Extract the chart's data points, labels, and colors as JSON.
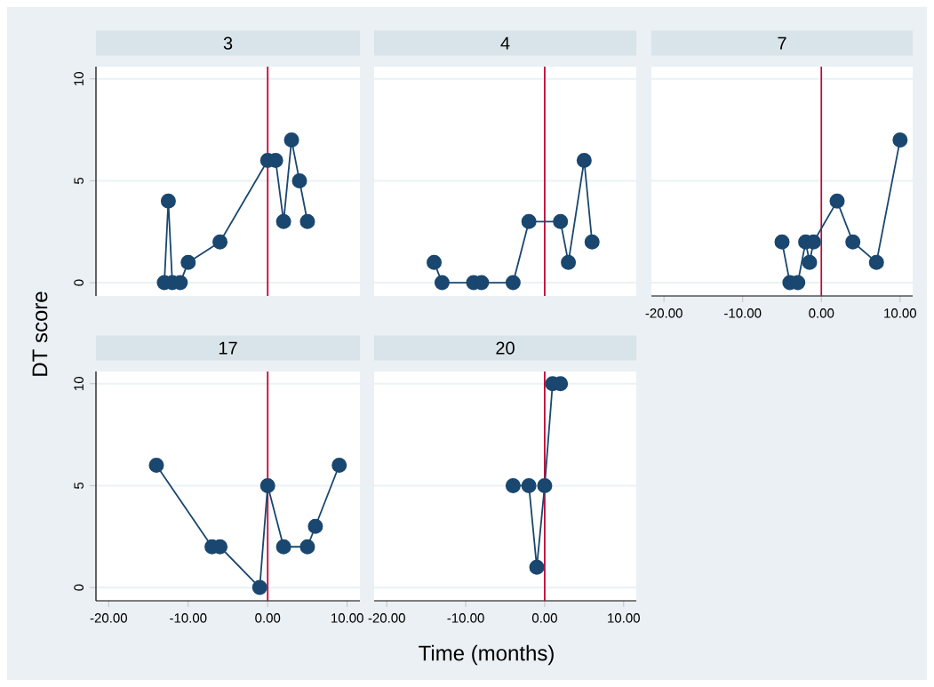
{
  "chart_data": [
    {
      "type": "line",
      "title": "3",
      "ylabel": "DT score",
      "marker": "circle",
      "grid": "y",
      "tick_labels": "y",
      "color": "#1a476f",
      "x": [
        -13,
        -12.5,
        -12,
        -11,
        -10,
        -6,
        0,
        1,
        2,
        3,
        4,
        5
      ],
      "values": [
        0,
        4,
        0,
        0,
        1,
        2,
        6,
        6,
        3,
        7,
        5,
        3
      ],
      "xlim": [
        -21.6,
        11.6
      ],
      "ylim": [
        -0.65,
        10.6
      ],
      "yticks": [
        0,
        5,
        10
      ],
      "ref_lines": [
        {
          "axis": "x",
          "value": 0,
          "color": "#c10534"
        }
      ]
    },
    {
      "type": "line",
      "title": "4",
      "marker": "circle",
      "grid": "y",
      "tick_labels": false,
      "color": "#1a476f",
      "x": [
        -14,
        -13,
        -9,
        -8,
        -4,
        -2,
        2,
        3,
        5,
        6
      ],
      "values": [
        1,
        0,
        0,
        0,
        0,
        3,
        3,
        1,
        6,
        2
      ],
      "xlim": [
        -21.6,
        11.6
      ],
      "ylim": [
        -0.65,
        10.6
      ],
      "yticks": [
        0,
        5,
        10
      ],
      "ref_lines": [
        {
          "axis": "x",
          "value": 0,
          "color": "#c10534"
        }
      ]
    },
    {
      "type": "line",
      "title": "7",
      "marker": "circle",
      "grid": "y",
      "tick_labels": "x",
      "color": "#1a476f",
      "x": [
        -5,
        -4,
        -3,
        -2,
        -1.5,
        -1,
        2,
        4,
        7,
        10
      ],
      "values": [
        2,
        0,
        0,
        2,
        1,
        2,
        4,
        2,
        1,
        7
      ],
      "xlim": [
        -21.6,
        11.6
      ],
      "ylim": [
        -0.65,
        10.6
      ],
      "xticks": [
        {
          "value": -20,
          "label": "-20.00"
        },
        {
          "value": -10,
          "label": "-10.00"
        },
        {
          "value": 0,
          "label": "0.00"
        },
        {
          "value": 10,
          "label": "10.00"
        }
      ],
      "yticks": [
        0,
        5,
        10
      ],
      "ref_lines": [
        {
          "axis": "x",
          "value": 0,
          "color": "#c10534"
        }
      ]
    },
    {
      "type": "line",
      "title": "17",
      "marker": "circle",
      "grid": "y",
      "color": "#1a476f",
      "x": [
        -14,
        -7,
        -6,
        -1,
        0,
        2,
        5,
        6,
        9
      ],
      "values": [
        6,
        2,
        2,
        0,
        5,
        2,
        2,
        3,
        6
      ],
      "xlim": [
        -21.6,
        11.6
      ],
      "ylim": [
        -0.65,
        10.6
      ],
      "xticks": [
        {
          "value": -20,
          "label": "-20.00"
        },
        {
          "value": -10,
          "label": "-10.00"
        },
        {
          "value": 0,
          "label": "0.00"
        },
        {
          "value": 10,
          "label": "10.00"
        }
      ],
      "yticks": [
        0,
        5,
        10
      ],
      "ref_lines": [
        {
          "axis": "x",
          "value": 0,
          "color": "#c10534"
        }
      ]
    },
    {
      "type": "line",
      "title": "20",
      "xlabel": "Time (months)",
      "marker": "circle",
      "grid": "y",
      "tick_labels": "x",
      "color": "#1a476f",
      "x": [
        -4,
        -2,
        -1,
        0,
        1,
        2
      ],
      "values": [
        5,
        5,
        1,
        5,
        10,
        10
      ],
      "xlim": [
        -21.6,
        11.6
      ],
      "ylim": [
        -0.65,
        10.6
      ],
      "xticks": [
        {
          "value": -20,
          "label": "-20.00"
        },
        {
          "value": -10,
          "label": "-10.00"
        },
        {
          "value": 0,
          "label": "0.00"
        },
        {
          "value": 10,
          "label": "10.00"
        }
      ],
      "yticks": [
        0,
        5,
        10
      ],
      "ref_lines": [
        {
          "axis": "x",
          "value": 0,
          "color": "#c10534"
        }
      ]
    }
  ]
}
